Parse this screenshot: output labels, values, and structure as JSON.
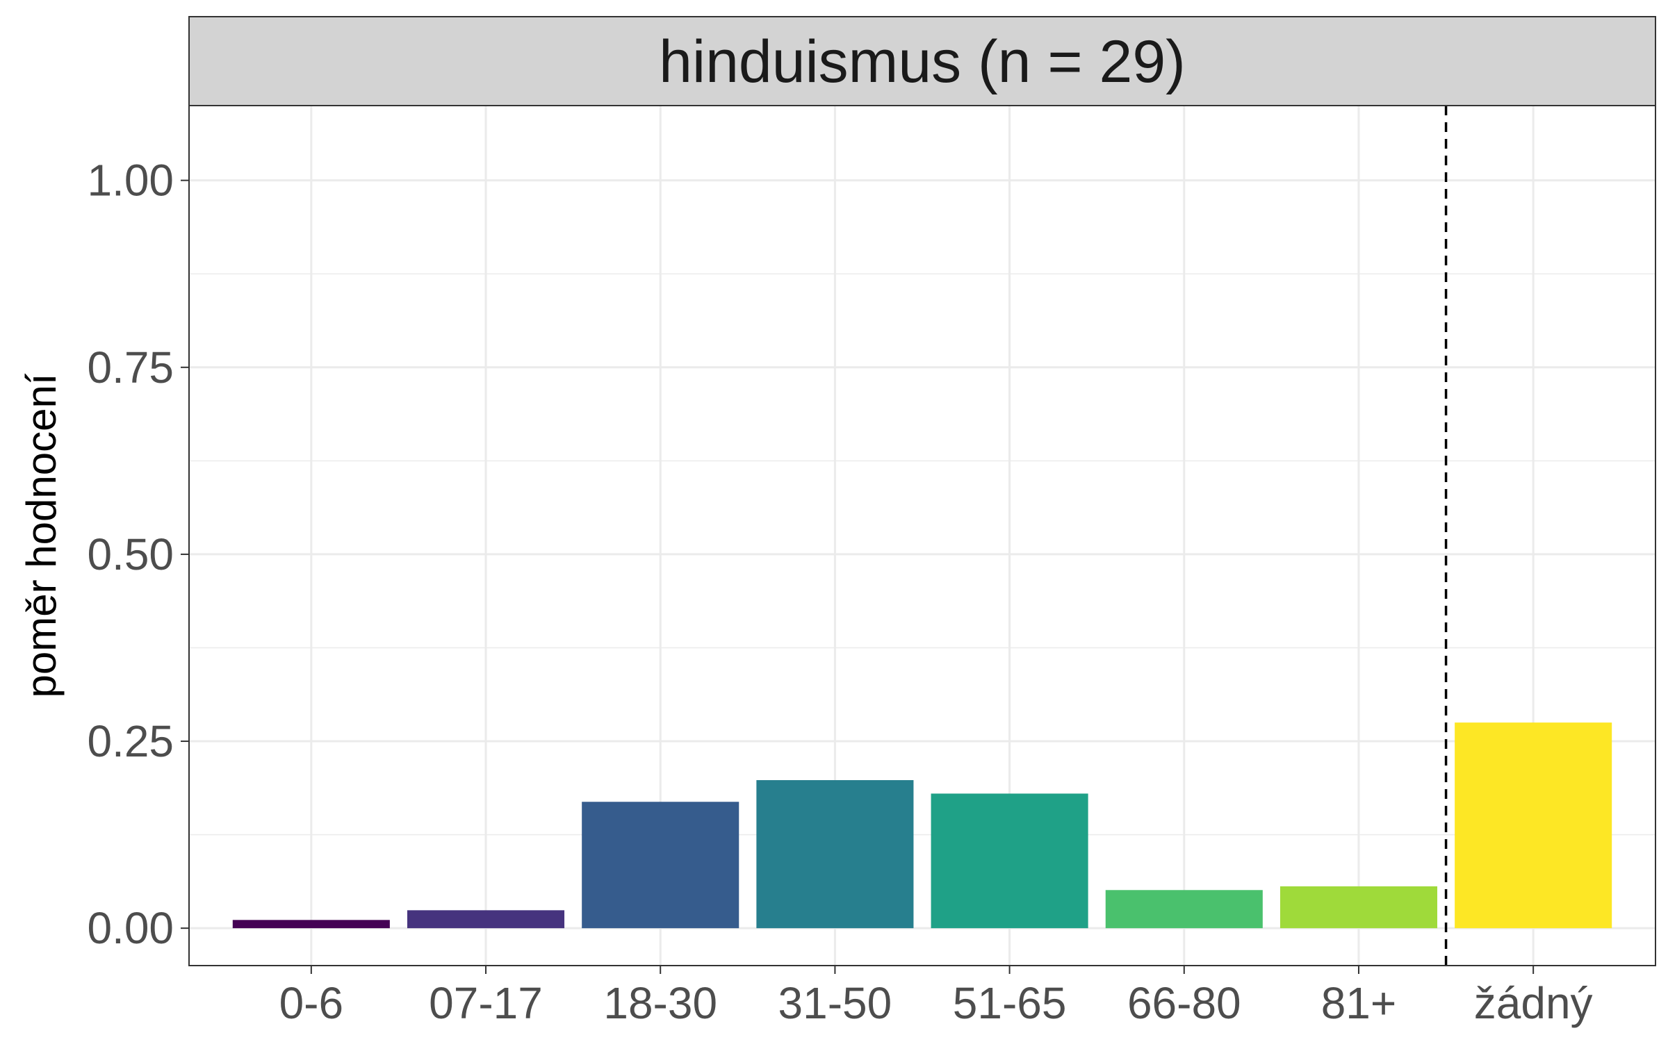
{
  "chart_data": {
    "type": "bar",
    "title": "hinduismus (n = 29)",
    "xlabel": "",
    "ylabel": "poměr hodnocení",
    "categories": [
      "0-6",
      "07-17",
      "18-30",
      "31-50",
      "51-65",
      "66-80",
      "81+",
      "žádný"
    ],
    "values": [
      0.011,
      0.024,
      0.169,
      0.198,
      0.18,
      0.051,
      0.056,
      0.275
    ],
    "colors": [
      "#440154",
      "#46337e",
      "#365c8d",
      "#277f8e",
      "#1fa187",
      "#4ac16d",
      "#9fda3a",
      "#fde725"
    ],
    "ylim": [
      -0.05,
      1.1
    ],
    "yticks": [
      "0.00",
      "0.25",
      "0.50",
      "0.75",
      "1.00"
    ],
    "ytick_values": [
      0,
      0.25,
      0.5,
      0.75,
      1.0
    ],
    "reference_line": {
      "style": "dashed",
      "between": [
        "81+",
        "žádný"
      ]
    },
    "grid": true,
    "legend": "none"
  }
}
